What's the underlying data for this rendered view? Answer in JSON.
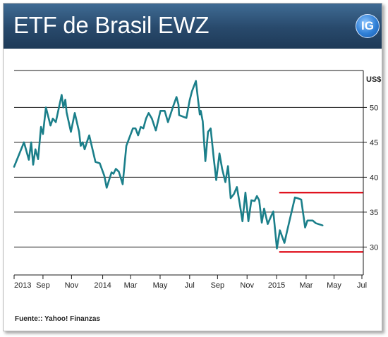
{
  "header": {
    "title": "ETF de Brasil EWZ",
    "logo_text": "IG"
  },
  "source": "Fuente:: Yahoo! Finanzas",
  "colors": {
    "line": "#1b7f8a",
    "band": "#e0131f",
    "header": "#28496b"
  },
  "chart_data": {
    "type": "line",
    "unit_label": "US$",
    "ylim": [
      26,
      56
    ],
    "y_ticks": [
      30,
      35,
      40,
      45,
      50
    ],
    "x_ticks": [
      {
        "label": "2013",
        "t": 0
      },
      {
        "label": "Sep",
        "t": 8.8
      },
      {
        "label": "Nov",
        "t": 17.5
      },
      {
        "label": "2014",
        "t": 27
      },
      {
        "label": "Mar",
        "t": 35.5
      },
      {
        "label": "May",
        "t": 44.5
      },
      {
        "label": "Jul",
        "t": 53.5
      },
      {
        "label": "Sep",
        "t": 62
      },
      {
        "label": "Nov",
        "t": 71
      },
      {
        "label": "2015",
        "t": 80
      },
      {
        "label": "Mar",
        "t": 89
      },
      {
        "label": "May",
        "t": 97.5
      },
      {
        "label": "Jul",
        "t": 106
      }
    ],
    "x_range": [
      0,
      106
    ],
    "grid": true,
    "series": [
      {
        "points": [
          [
            0,
            41.5
          ],
          [
            3,
            45.0
          ],
          [
            4.5,
            42.5
          ],
          [
            5.2,
            45.0
          ],
          [
            5.8,
            41.8
          ],
          [
            6.5,
            44.0
          ],
          [
            7.3,
            42.6
          ],
          [
            8.2,
            47.2
          ],
          [
            8.8,
            46.2
          ],
          [
            9.7,
            50.0
          ],
          [
            11.1,
            47.4
          ],
          [
            11.8,
            48.4
          ],
          [
            12.7,
            47.9
          ],
          [
            14.5,
            51.8
          ],
          [
            15.0,
            50.0
          ],
          [
            15.6,
            51.1
          ],
          [
            16.0,
            49.3
          ],
          [
            17.3,
            46.5
          ],
          [
            18.5,
            49.2
          ],
          [
            19.8,
            46.5
          ],
          [
            20.3,
            44.5
          ],
          [
            20.9,
            45.0
          ],
          [
            21.5,
            44.0
          ],
          [
            22.3,
            45.2
          ],
          [
            22.9,
            46.0
          ],
          [
            24.8,
            42.2
          ],
          [
            26.1,
            42.0
          ],
          [
            27.5,
            40.2
          ],
          [
            28.2,
            38.5
          ],
          [
            29.7,
            40.7
          ],
          [
            30.3,
            40.5
          ],
          [
            31.0,
            41.2
          ],
          [
            31.9,
            40.8
          ],
          [
            32.5,
            39.9
          ],
          [
            33.1,
            39.0
          ],
          [
            34.2,
            44.5
          ],
          [
            35.0,
            45.5
          ],
          [
            36.2,
            47.0
          ],
          [
            37.0,
            47.0
          ],
          [
            37.8,
            46.0
          ],
          [
            38.6,
            47.2
          ],
          [
            39.4,
            47.0
          ],
          [
            40.2,
            48.4
          ],
          [
            41.0,
            49.2
          ],
          [
            42.0,
            48.4
          ],
          [
            43.2,
            46.7
          ],
          [
            44.6,
            49.5
          ],
          [
            45.9,
            49.5
          ],
          [
            46.9,
            47.9
          ],
          [
            48.5,
            50.2
          ],
          [
            49.5,
            51.5
          ],
          [
            50.1,
            50.4
          ],
          [
            50.3,
            48.9
          ],
          [
            52.5,
            48.5
          ],
          [
            53.5,
            51.0
          ],
          [
            54.2,
            52.3
          ],
          [
            55.4,
            53.8
          ],
          [
            56.0,
            51.3
          ],
          [
            56.6,
            49.0
          ],
          [
            56.9,
            49.5
          ],
          [
            57.5,
            48.0
          ],
          [
            58.3,
            42.3
          ],
          [
            59.1,
            46.5
          ],
          [
            59.9,
            47.0
          ],
          [
            60.8,
            42.9
          ],
          [
            61.6,
            39.6
          ],
          [
            62.6,
            43.4
          ],
          [
            63.4,
            41.2
          ],
          [
            64.4,
            39.3
          ],
          [
            65.2,
            41.6
          ],
          [
            66.0,
            37.0
          ],
          [
            67.0,
            37.6
          ],
          [
            67.9,
            38.6
          ],
          [
            68.8,
            36.1
          ],
          [
            69.6,
            33.7
          ],
          [
            70.5,
            37.8
          ],
          [
            71.4,
            33.7
          ],
          [
            72.3,
            36.7
          ],
          [
            73.3,
            36.6
          ],
          [
            74.0,
            37.3
          ],
          [
            74.7,
            36.7
          ],
          [
            75.5,
            33.5
          ],
          [
            76.2,
            35.5
          ],
          [
            77.3,
            33.3
          ],
          [
            78.3,
            34.4
          ],
          [
            79.0,
            35.1
          ],
          [
            80.1,
            29.8
          ],
          [
            81.0,
            32.4
          ],
          [
            82.4,
            30.6
          ],
          [
            83.2,
            32.3
          ],
          [
            85.6,
            37.1
          ],
          [
            86.4,
            37.0
          ],
          [
            87.5,
            36.8
          ],
          [
            88.7,
            32.8
          ],
          [
            89.4,
            33.8
          ],
          [
            91.0,
            33.8
          ],
          [
            92.0,
            33.4
          ],
          [
            94.0,
            33.1
          ]
        ]
      }
    ],
    "resistance_level": 37.8,
    "support_level": 29.3
  }
}
